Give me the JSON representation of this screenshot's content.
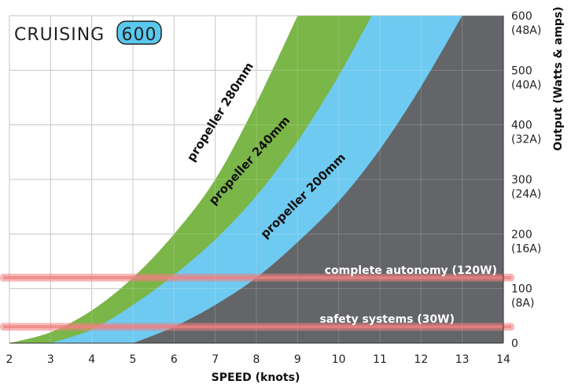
{
  "logo": {
    "text": "CRUISING",
    "number": "600",
    "number_fill": "#5bc8ee"
  },
  "colors": {
    "dark": "#636568",
    "blue": "#6ecaf0",
    "green": "#7ab648",
    "grid": "#bdbdbd",
    "red_band": "#f08080"
  },
  "chart_data": {
    "type": "area",
    "xlabel": "SPEED (knots)",
    "ylabel": "Output (Watts & amps)",
    "xlim": [
      2,
      14
    ],
    "ylim": [
      0,
      600
    ],
    "x_ticks": [
      "2",
      "3",
      "4",
      "5",
      "6",
      "7",
      "8",
      "9",
      "10",
      "11",
      "12",
      "13",
      "14"
    ],
    "y_ticks": [
      {
        "value": 0,
        "watts": "0",
        "amps": ""
      },
      {
        "value": 100,
        "watts": "100",
        "amps": "(8A)"
      },
      {
        "value": 200,
        "watts": "200",
        "amps": "(16A)"
      },
      {
        "value": 300,
        "watts": "300",
        "amps": "(24A)"
      },
      {
        "value": 400,
        "watts": "400",
        "amps": "(32A)"
      },
      {
        "value": 500,
        "watts": "500",
        "amps": "(40A)"
      },
      {
        "value": 600,
        "watts": "600",
        "amps": "(48A)"
      }
    ],
    "grid": true,
    "series": [
      {
        "name": "propeller 280mm",
        "color": "#7ab648",
        "x": [
          2.0,
          3.0,
          4.0,
          5.0,
          6.0,
          7.0,
          8.0,
          9.0
        ],
        "y": [
          0,
          20,
          60,
          120,
          200,
          300,
          440,
          600
        ]
      },
      {
        "name": "propeller 240mm",
        "color": "#6ecaf0",
        "x": [
          3.0,
          4.0,
          5.0,
          6.0,
          7.0,
          8.0,
          9.0,
          10.0,
          10.8
        ],
        "y": [
          0,
          25,
          70,
          125,
          190,
          270,
          370,
          490,
          600
        ]
      },
      {
        "name": "propeller 200mm",
        "color": "#636568",
        "x": [
          5.0,
          6.0,
          7.0,
          8.0,
          9.0,
          10.0,
          11.0,
          12.0,
          13.0
        ],
        "y": [
          0,
          30,
          70,
          120,
          185,
          260,
          355,
          470,
          600
        ]
      }
    ],
    "reference_lines": [
      {
        "name": "complete autonomy (120W)",
        "value": 120
      },
      {
        "name": "safety systems (30W)",
        "value": 30
      }
    ]
  }
}
